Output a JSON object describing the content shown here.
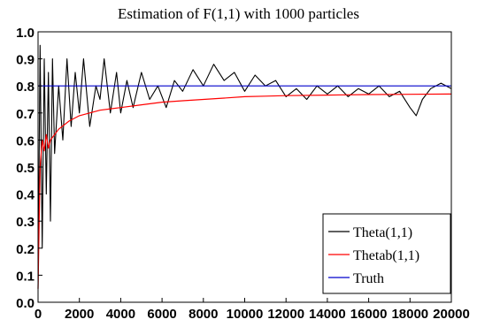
{
  "chart_data": {
    "type": "line",
    "title": "Estimation of F(1,1) with 1000 particles",
    "xlim": [
      0,
      20000
    ],
    "ylim": [
      0,
      1.0
    ],
    "xticks": [
      "0",
      "2000",
      "4000",
      "6000",
      "8000",
      "10000",
      "12000",
      "14000",
      "16000",
      "18000",
      "20000"
    ],
    "xtick_values": [
      0,
      2000,
      4000,
      6000,
      8000,
      10000,
      12000,
      14000,
      16000,
      18000,
      20000
    ],
    "yticks": [
      "0.0",
      "0.1",
      "0.2",
      "0.3",
      "0.4",
      "0.5",
      "0.6",
      "0.7",
      "0.8",
      "0.9",
      "1.0"
    ],
    "ytick_values": [
      0.0,
      0.1,
      0.2,
      0.3,
      0.4,
      0.5,
      0.6,
      0.7,
      0.8,
      0.9,
      1.0
    ],
    "grid": false,
    "legend_position": "bottom-right",
    "series": [
      {
        "name": "Theta(1,1)",
        "color": "#000000",
        "x": [
          0,
          100,
          200,
          300,
          400,
          500,
          600,
          700,
          800,
          1000,
          1200,
          1400,
          1600,
          1800,
          2000,
          2200,
          2500,
          2800,
          3000,
          3200,
          3500,
          3800,
          4000,
          4300,
          4600,
          5000,
          5400,
          5800,
          6200,
          6600,
          7000,
          7500,
          8000,
          8500,
          9000,
          9500,
          10000,
          10500,
          11000,
          11500,
          12000,
          12500,
          13000,
          13500,
          14000,
          14500,
          15000,
          15500,
          16000,
          16500,
          17000,
          17500,
          18000,
          18300,
          18600,
          19000,
          19500,
          20000
        ],
        "values": [
          0.05,
          0.95,
          0.2,
          0.9,
          0.4,
          0.85,
          0.3,
          0.9,
          0.55,
          0.8,
          0.6,
          0.9,
          0.65,
          0.85,
          0.7,
          0.9,
          0.65,
          0.8,
          0.75,
          0.9,
          0.7,
          0.85,
          0.7,
          0.82,
          0.72,
          0.85,
          0.75,
          0.8,
          0.72,
          0.82,
          0.78,
          0.86,
          0.8,
          0.88,
          0.82,
          0.85,
          0.78,
          0.84,
          0.8,
          0.82,
          0.76,
          0.79,
          0.75,
          0.8,
          0.77,
          0.8,
          0.76,
          0.79,
          0.77,
          0.8,
          0.76,
          0.78,
          0.72,
          0.69,
          0.75,
          0.79,
          0.81,
          0.79
        ]
      },
      {
        "name": "Thetab(1,1)",
        "color": "#ff0000",
        "x": [
          0,
          100,
          200,
          300,
          400,
          500,
          600,
          800,
          1000,
          1500,
          2000,
          2500,
          3000,
          4000,
          5000,
          6000,
          7000,
          8000,
          9000,
          10000,
          11000,
          12000,
          14000,
          16000,
          18000,
          20000
        ],
        "values": [
          0.05,
          0.5,
          0.6,
          0.56,
          0.62,
          0.57,
          0.6,
          0.62,
          0.64,
          0.67,
          0.69,
          0.7,
          0.71,
          0.72,
          0.73,
          0.74,
          0.745,
          0.75,
          0.755,
          0.76,
          0.762,
          0.764,
          0.766,
          0.768,
          0.769,
          0.77
        ]
      },
      {
        "name": "Truth",
        "color": "#0000cc",
        "x": [
          0,
          20000
        ],
        "values": [
          0.8,
          0.8
        ]
      }
    ]
  }
}
